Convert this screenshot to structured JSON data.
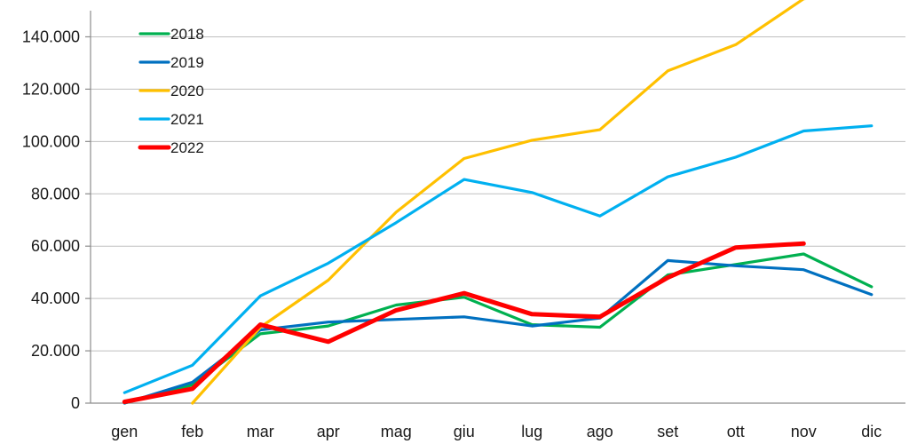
{
  "chart_data": {
    "type": "line",
    "title": "",
    "xlabel": "",
    "ylabel": "",
    "categories": [
      "gen",
      "feb",
      "mar",
      "apr",
      "mag",
      "giu",
      "lug",
      "ago",
      "set",
      "ott",
      "nov",
      "dic"
    ],
    "ylim": [
      0,
      150000
    ],
    "yticks": [
      0,
      20000,
      40000,
      60000,
      80000,
      100000,
      120000,
      140000
    ],
    "ytick_labels": [
      "0",
      "20.000",
      "40.000",
      "60.000",
      "80.000",
      "100.000",
      "120.000",
      "140.000"
    ],
    "grid": "horizontal",
    "legend_position": "top-left",
    "series": [
      {
        "name": "2018",
        "color": "#00b050",
        "values": [
          0,
          7000,
          26500,
          29500,
          37500,
          40500,
          30000,
          29000,
          49000,
          53000,
          57000,
          44500
        ]
      },
      {
        "name": "2019",
        "color": "#0070c0",
        "values": [
          0,
          8000,
          28000,
          31000,
          32000,
          33000,
          29500,
          32500,
          54500,
          52500,
          51000,
          41500
        ]
      },
      {
        "name": "2020",
        "color": "#ffc000",
        "values": [
          null,
          0,
          29000,
          47000,
          73000,
          93500,
          100500,
          104500,
          127000,
          137000,
          154500,
          157500
        ]
      },
      {
        "name": "2021",
        "color": "#00b0f0",
        "values": [
          4000,
          14500,
          41000,
          53500,
          69000,
          85500,
          80500,
          71500,
          86500,
          94000,
          104000,
          106000
        ]
      },
      {
        "name": "2022",
        "color": "#ff0000",
        "values": [
          500,
          5500,
          30000,
          23500,
          35500,
          42000,
          34000,
          33000,
          48000,
          59500,
          61000,
          null
        ]
      }
    ]
  }
}
